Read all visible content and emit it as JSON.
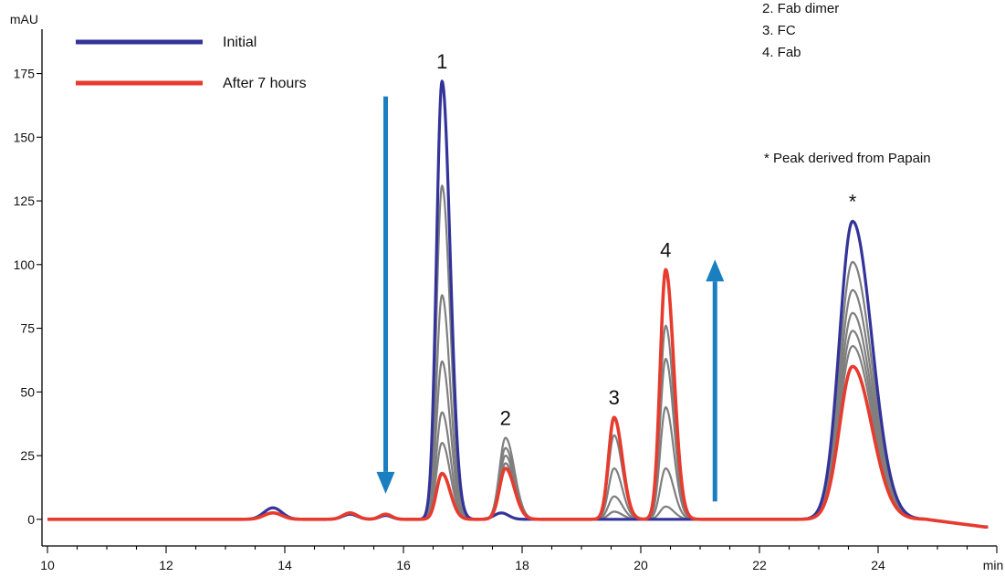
{
  "chart_data": {
    "type": "line",
    "ylabel": "mAU",
    "xlabel": "min",
    "xlim": [
      10,
      26
    ],
    "ylim": [
      -20,
      180
    ],
    "xticks": [
      10,
      12,
      14,
      16,
      18,
      20,
      22,
      24
    ],
    "yticks": [
      0,
      25,
      50,
      75,
      100,
      125,
      150,
      175
    ],
    "baseline_noise": [
      {
        "x": 13.8,
        "initial": 4.5,
        "final": 2.5,
        "width": 0.15
      },
      {
        "x": 15.1,
        "initial": 2.0,
        "final": 2.5,
        "width": 0.12
      },
      {
        "x": 15.7,
        "initial": 1.5,
        "final": 2.0,
        "width": 0.1
      },
      {
        "x": 17.65,
        "initial": 2.5,
        "final": 0,
        "width": 0.12
      }
    ],
    "peaks": [
      {
        "label": "1",
        "x": 16.65,
        "width": 0.11,
        "initial": 172,
        "final": 18,
        "intermediate": [
          131,
          88,
          62,
          42,
          30
        ]
      },
      {
        "label": "2",
        "x": 17.72,
        "width": 0.12,
        "initial": 0,
        "final": 20,
        "intermediate": [
          32,
          28,
          25,
          22
        ]
      },
      {
        "label": "3",
        "x": 19.55,
        "width": 0.11,
        "initial": 0,
        "final": 40,
        "intermediate": [
          33,
          20,
          9,
          3
        ]
      },
      {
        "label": "4",
        "x": 20.42,
        "width": 0.11,
        "initial": 0,
        "final": 98,
        "intermediate": [
          76,
          63,
          44,
          20,
          5
        ]
      },
      {
        "label": "*",
        "x": 23.57,
        "width": 0.26,
        "initial": 117,
        "final": 60,
        "intermediate": [
          101,
          90,
          81,
          74,
          68
        ]
      }
    ],
    "series": [
      {
        "name": "Initial",
        "color": "#33339a"
      },
      {
        "name": "After 7 hours",
        "color": "#e63b2e"
      }
    ],
    "intermediate_color": "#7f7f7f",
    "legend_position": "top-left",
    "arrows": [
      {
        "direction": "down",
        "x": 15.7,
        "y_from": 166,
        "y_to": 10,
        "color": "#1a7fc1"
      },
      {
        "direction": "up",
        "x": 21.25,
        "y_from": 7,
        "y_to": 102,
        "color": "#1a7fc1"
      }
    ],
    "notes": [
      "2.  Fab dimer",
      "3.  FC",
      "4.  Fab"
    ],
    "annotation": "* Peak derived from Papain"
  }
}
